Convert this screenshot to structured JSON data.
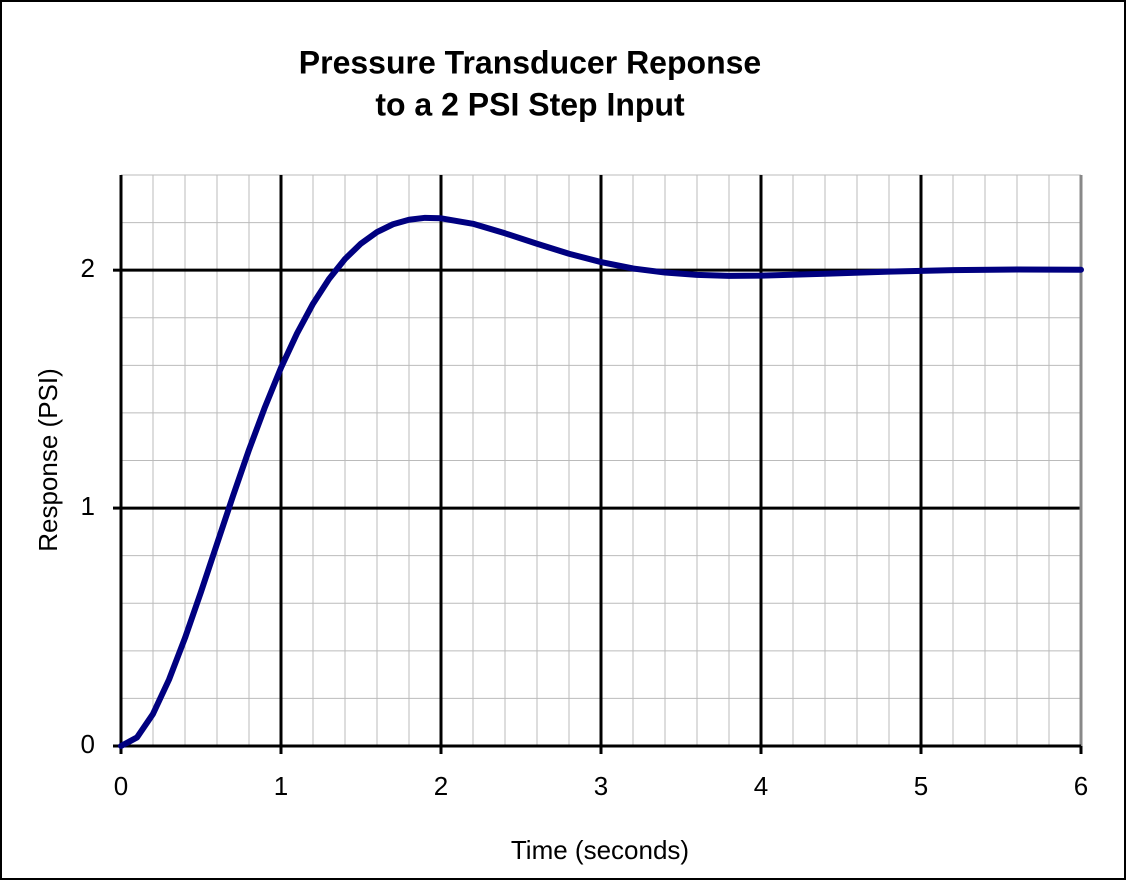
{
  "chart_data": {
    "type": "line",
    "title": [
      "Pressure Transducer Reponse",
      "to a 2 PSI Step Input"
    ],
    "x_label": "Time (seconds)",
    "y_label": "Response (PSI)",
    "x": [
      0,
      0.1,
      0.2,
      0.3,
      0.4,
      0.5,
      0.6,
      0.7,
      0.8,
      0.9,
      1.0,
      1.1,
      1.2,
      1.3,
      1.4,
      1.5,
      1.6,
      1.7,
      1.8,
      1.9,
      2.0,
      2.2,
      2.4,
      2.6,
      2.8,
      3.0,
      3.2,
      3.4,
      3.6,
      3.8,
      4.0,
      4.4,
      4.8,
      5.2,
      5.6,
      6.0
    ],
    "series": [
      {
        "name": "Response",
        "color": "#000080",
        "values": [
          0,
          0.036,
          0.135,
          0.279,
          0.454,
          0.648,
          0.85,
          1.051,
          1.245,
          1.425,
          1.59,
          1.734,
          1.859,
          1.963,
          2.047,
          2.112,
          2.16,
          2.193,
          2.212,
          2.22,
          2.218,
          2.195,
          2.155,
          2.111,
          2.069,
          2.034,
          2.007,
          1.99,
          1.98,
          1.976,
          1.977,
          1.985,
          1.994,
          2.0,
          2.003,
          2.002
        ]
      }
    ],
    "xlim": [
      0,
      6
    ],
    "ylim": [
      0,
      2.4
    ],
    "xticks": [
      0,
      1,
      2,
      3,
      4,
      5,
      6
    ],
    "yticks": [
      0,
      1,
      2
    ],
    "minor_xticks": [
      0.2,
      0.4,
      0.6,
      0.8,
      1.2,
      1.4,
      1.6,
      1.8,
      2.2,
      2.4,
      2.6,
      2.8,
      3.2,
      3.4,
      3.6,
      3.8,
      4.2,
      4.4,
      4.6,
      4.8,
      5.2,
      5.4,
      5.6,
      5.8
    ],
    "minor_yticks": [
      0.2,
      0.4,
      0.6,
      0.8,
      1.2,
      1.4,
      1.6,
      1.8,
      2.2,
      2.4
    ],
    "grid": true
  }
}
